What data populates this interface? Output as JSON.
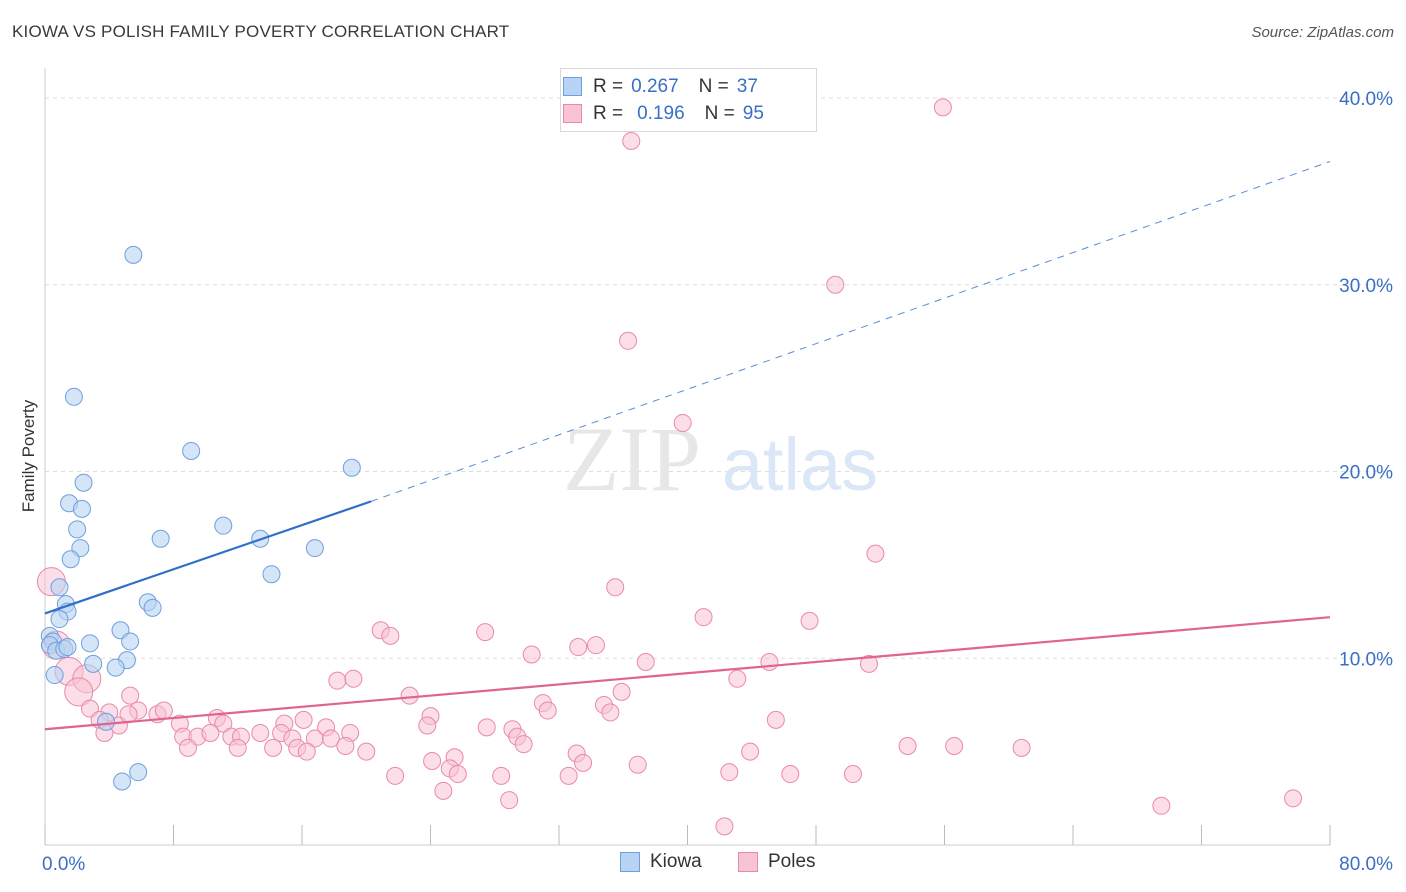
{
  "header": {
    "title": "KIOWA VS POLISH FAMILY POVERTY CORRELATION CHART",
    "source": "Source: ZipAtlas.com"
  },
  "watermark": {
    "zip": "ZIP",
    "atlas": "atlas"
  },
  "legend": {
    "rows": [
      {
        "r_label": "R =",
        "r_value": "0.267",
        "n_label": "N =",
        "n_value": "37"
      },
      {
        "r_label": "R =",
        "r_value": "0.196",
        "n_label": "N =",
        "n_value": "95"
      }
    ]
  },
  "colors": {
    "kiowa_fill": "#b8d3f4",
    "kiowa_stroke": "#6f9fdc",
    "kiowa_line": "#2f6fc9",
    "poles_fill": "#f8c3d4",
    "poles_stroke": "#e98aa9",
    "poles_line": "#e0648e",
    "grid": "#dddddd",
    "tick_label": "#3a6fc4"
  },
  "chart_data": {
    "type": "scatter",
    "ylabel": "Family Poverty",
    "xlim": [
      0,
      80
    ],
    "ylim": [
      0,
      41.5
    ],
    "x_tick_labels": [
      "0.0%",
      "80.0%"
    ],
    "y_ticks": [
      10,
      20,
      30,
      40
    ],
    "y_tick_labels": [
      "10.0%",
      "20.0%",
      "30.0%",
      "40.0%"
    ],
    "grid": true,
    "legend_placement": "top-center",
    "series": [
      {
        "name": "Kiowa",
        "r": 0.267,
        "n": 37,
        "trend": {
          "x0": 0,
          "y0": 12.4,
          "x1": 20.3,
          "y1": 18.4,
          "dash_to_x": 80,
          "dash_to_y": 36.6
        },
        "points": [
          [
            5.5,
            31.6
          ],
          [
            1.8,
            24.0
          ],
          [
            9.1,
            21.1
          ],
          [
            19.1,
            20.2
          ],
          [
            2.4,
            19.4
          ],
          [
            1.5,
            18.3
          ],
          [
            2.3,
            18.0
          ],
          [
            11.1,
            17.1
          ],
          [
            2.0,
            16.9
          ],
          [
            7.2,
            16.4
          ],
          [
            13.4,
            16.4
          ],
          [
            2.2,
            15.9
          ],
          [
            16.8,
            15.9
          ],
          [
            1.6,
            15.3
          ],
          [
            14.1,
            14.5
          ],
          [
            0.9,
            13.8
          ],
          [
            6.4,
            13.0
          ],
          [
            1.3,
            12.9
          ],
          [
            6.7,
            12.7
          ],
          [
            1.4,
            12.5
          ],
          [
            0.9,
            12.1
          ],
          [
            4.7,
            11.5
          ],
          [
            0.3,
            11.2
          ],
          [
            0.5,
            10.9
          ],
          [
            0.3,
            10.7
          ],
          [
            2.8,
            10.8
          ],
          [
            5.3,
            10.9
          ],
          [
            0.7,
            10.4
          ],
          [
            1.2,
            10.5
          ],
          [
            1.4,
            10.6
          ],
          [
            5.1,
            9.9
          ],
          [
            3.0,
            9.7
          ],
          [
            4.4,
            9.5
          ],
          [
            0.6,
            9.1
          ],
          [
            3.8,
            6.6
          ],
          [
            5.8,
            3.9
          ],
          [
            4.8,
            3.4
          ]
        ]
      },
      {
        "name": "Poles",
        "r": 0.196,
        "n": 95,
        "trend": {
          "x0": 0,
          "y0": 6.2,
          "x1": 80,
          "y1": 12.2
        },
        "points": [
          [
            55.9,
            39.5
          ],
          [
            36.5,
            37.7
          ],
          [
            49.2,
            30.0
          ],
          [
            36.3,
            27.0
          ],
          [
            39.7,
            22.6
          ],
          [
            51.7,
            15.6
          ],
          [
            0.4,
            14.1
          ],
          [
            35.5,
            13.8
          ],
          [
            41.0,
            12.2
          ],
          [
            47.6,
            12.0
          ],
          [
            20.9,
            11.5
          ],
          [
            21.5,
            11.2
          ],
          [
            27.4,
            11.4
          ],
          [
            33.2,
            10.6
          ],
          [
            34.3,
            10.7
          ],
          [
            30.3,
            10.2
          ],
          [
            37.4,
            9.8
          ],
          [
            45.1,
            9.8
          ],
          [
            51.3,
            9.7
          ],
          [
            0.7,
            10.7
          ],
          [
            1.5,
            9.3
          ],
          [
            2.6,
            8.9
          ],
          [
            18.2,
            8.8
          ],
          [
            19.2,
            8.9
          ],
          [
            43.1,
            8.9
          ],
          [
            2.1,
            8.2
          ],
          [
            5.3,
            8.0
          ],
          [
            22.7,
            8.0
          ],
          [
            35.9,
            8.2
          ],
          [
            31.0,
            7.6
          ],
          [
            34.8,
            7.5
          ],
          [
            2.8,
            7.3
          ],
          [
            4.0,
            7.1
          ],
          [
            5.8,
            7.2
          ],
          [
            7.0,
            7.0
          ],
          [
            7.4,
            7.2
          ],
          [
            10.7,
            6.8
          ],
          [
            24.0,
            6.9
          ],
          [
            31.3,
            7.2
          ],
          [
            35.2,
            7.1
          ],
          [
            3.4,
            6.7
          ],
          [
            4.6,
            6.4
          ],
          [
            8.4,
            6.5
          ],
          [
            11.1,
            6.5
          ],
          [
            14.9,
            6.5
          ],
          [
            16.1,
            6.7
          ],
          [
            17.5,
            6.3
          ],
          [
            23.8,
            6.4
          ],
          [
            27.5,
            6.3
          ],
          [
            29.1,
            6.2
          ],
          [
            45.5,
            6.7
          ],
          [
            3.7,
            6.0
          ],
          [
            8.6,
            5.8
          ],
          [
            9.5,
            5.8
          ],
          [
            11.6,
            5.8
          ],
          [
            12.2,
            5.8
          ],
          [
            13.4,
            6.0
          ],
          [
            14.7,
            6.0
          ],
          [
            15.4,
            5.7
          ],
          [
            16.8,
            5.7
          ],
          [
            17.8,
            5.7
          ],
          [
            19.0,
            6.0
          ],
          [
            29.4,
            5.8
          ],
          [
            8.9,
            5.2
          ],
          [
            12.0,
            5.2
          ],
          [
            14.2,
            5.2
          ],
          [
            15.7,
            5.2
          ],
          [
            16.3,
            5.0
          ],
          [
            18.7,
            5.3
          ],
          [
            20.0,
            5.0
          ],
          [
            25.5,
            4.7
          ],
          [
            29.8,
            5.4
          ],
          [
            33.1,
            4.9
          ],
          [
            43.9,
            5.0
          ],
          [
            53.7,
            5.3
          ],
          [
            56.6,
            5.3
          ],
          [
            60.8,
            5.2
          ],
          [
            24.1,
            4.5
          ],
          [
            25.2,
            4.1
          ],
          [
            25.7,
            3.8
          ],
          [
            28.4,
            3.7
          ],
          [
            32.6,
            3.7
          ],
          [
            36.9,
            4.3
          ],
          [
            42.6,
            3.9
          ],
          [
            46.4,
            3.8
          ],
          [
            50.3,
            3.8
          ],
          [
            21.8,
            3.7
          ],
          [
            24.8,
            2.9
          ],
          [
            28.9,
            2.4
          ],
          [
            69.5,
            2.1
          ],
          [
            77.7,
            2.5
          ],
          [
            42.3,
            1.0
          ],
          [
            33.5,
            4.4
          ],
          [
            10.3,
            6.0
          ],
          [
            5.2,
            7.0
          ]
        ]
      }
    ]
  }
}
